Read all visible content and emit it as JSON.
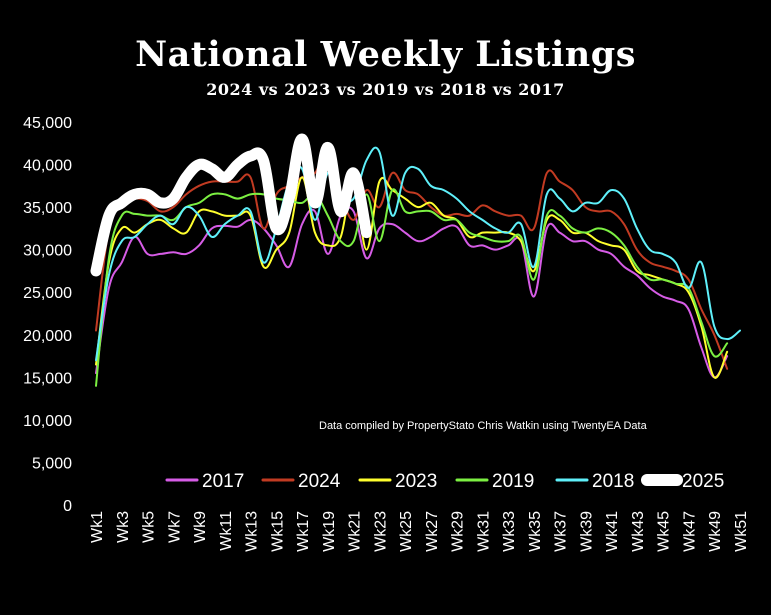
{
  "chart_data": {
    "type": "line",
    "title": "National Weekly Listings",
    "subtitle": "2024 vs 2023 vs 2019 vs 2018 vs 2017",
    "annotation": "Data compiled by PropertyStato Chris Watkin using TwentyEA Data",
    "ylim": [
      0,
      45000
    ],
    "yticks": [
      "0",
      "5,000",
      "10,000",
      "15,000",
      "20,000",
      "25,000",
      "30,000",
      "35,000",
      "40,000",
      "45,000"
    ],
    "x_tick_labels": [
      "Wk1",
      "Wk3",
      "Wk5",
      "Wk7",
      "Wk9",
      "Wk11",
      "Wk13",
      "Wk15",
      "Wk17",
      "Wk19",
      "Wk21",
      "Wk23",
      "Wk25",
      "Wk27",
      "Wk29",
      "Wk31",
      "Wk33",
      "Wk35",
      "Wk37",
      "Wk39",
      "Wk41",
      "Wk43",
      "Wk45",
      "Wk47",
      "Wk49",
      "Wk51"
    ],
    "legend_position": "bottom-inside",
    "grid": false,
    "series": [
      {
        "name": "2017",
        "color": "#d65ce6",
        "width": 2,
        "values": [
          15500,
          25500,
          28500,
          31500,
          29500,
          29500,
          29700,
          29500,
          30500,
          32500,
          32800,
          32700,
          33500,
          32500,
          30500,
          28000,
          33000,
          34500,
          29500,
          34000,
          34500,
          29000,
          32500,
          33000,
          32000,
          31000,
          31500,
          32500,
          32700,
          30500,
          30500,
          30000,
          30500,
          31000,
          24500,
          32500,
          32000,
          31000,
          31000,
          30000,
          29500,
          28000,
          27000,
          25500,
          24500,
          24000,
          23000,
          18500,
          15000,
          17500
        ]
      },
      {
        "name": "2024",
        "color": "#c23b22",
        "width": 2,
        "values": [
          20500,
          32500,
          35500,
          36000,
          35700,
          34500,
          35000,
          36500,
          37500,
          38000,
          38000,
          38000,
          38500,
          32500,
          36500,
          37500,
          38500,
          39000,
          41500,
          36500,
          33500,
          37000,
          35000,
          39000,
          37000,
          36500,
          35000,
          34000,
          34200,
          34000,
          35200,
          34500,
          34000,
          34000,
          32500,
          39000,
          38000,
          37000,
          35000,
          34500,
          34500,
          33000,
          30000,
          28500,
          28000,
          27500,
          26500,
          23000,
          20000,
          16000
        ]
      },
      {
        "name": "2023",
        "color": "#ffff2e",
        "width": 2,
        "values": [
          16500,
          28500,
          32500,
          32000,
          33000,
          33500,
          32500,
          32000,
          34500,
          34500,
          34000,
          34000,
          34000,
          28000,
          30000,
          32000,
          38500,
          32000,
          30500,
          31500,
          38000,
          30000,
          38000,
          37000,
          36000,
          35000,
          35500,
          34000,
          33500,
          31500,
          32000,
          32000,
          32000,
          31000,
          27500,
          33500,
          33500,
          32000,
          32000,
          31000,
          30500,
          30000,
          27500,
          27000,
          26500,
          26000,
          25000,
          21000,
          15000,
          18000
        ]
      },
      {
        "name": "2019",
        "color": "#7cf042",
        "width": 2,
        "values": [
          14000,
          29000,
          34000,
          34200,
          34000,
          34000,
          33500,
          35000,
          35500,
          36500,
          36500,
          36000,
          36500,
          36500,
          36000,
          35800,
          35500,
          36500,
          34000,
          31000,
          31000,
          36500,
          31000,
          37000,
          34500,
          34500,
          34500,
          33500,
          33500,
          32000,
          31500,
          31000,
          31000,
          31500,
          26500,
          34000,
          34000,
          32500,
          32000,
          32500,
          32000,
          30500,
          28000,
          26500,
          26500,
          26000,
          25500,
          21500,
          17500,
          19000
        ]
      },
      {
        "name": "2018",
        "color": "#5ff0fa",
        "width": 2,
        "values": [
          17000,
          27000,
          31000,
          31500,
          33000,
          34000,
          33000,
          35000,
          34000,
          31500,
          33000,
          34000,
          34500,
          28500,
          32500,
          38000,
          39500,
          33500,
          39000,
          36500,
          36000,
          40500,
          41500,
          34000,
          39000,
          39500,
          37500,
          37000,
          36000,
          34500,
          33500,
          32500,
          32000,
          33000,
          28000,
          36500,
          36000,
          34500,
          35500,
          35500,
          37000,
          36000,
          32500,
          30000,
          29500,
          28500,
          25500,
          28500,
          21000,
          19500,
          20500
        ]
      },
      {
        "name": "2025",
        "color": "#ffffff",
        "width": 11,
        "values": [
          27500,
          34000,
          35500,
          36500,
          36500,
          35500,
          36000,
          38500,
          40000,
          39500,
          38500,
          40000,
          41000,
          40500,
          32500,
          36000,
          43000,
          35500,
          42000,
          34500,
          39000,
          32000
        ]
      }
    ]
  }
}
